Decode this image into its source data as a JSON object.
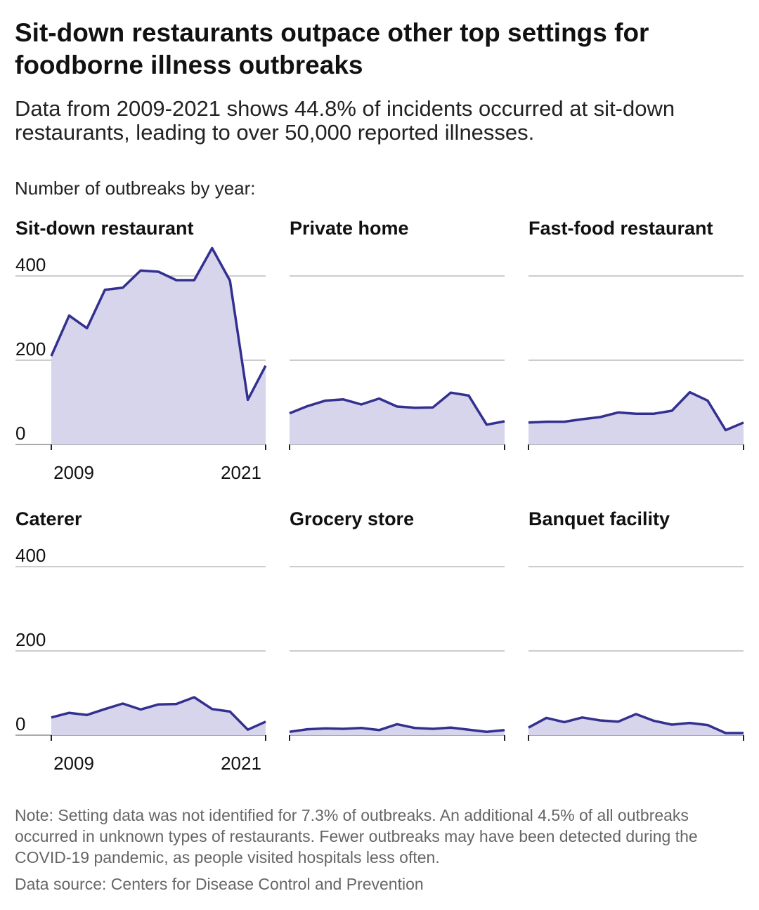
{
  "title": "Sit-down restaurants outpace other top settings for foodborne illness outbreaks",
  "subtitle": "Data from 2009-2021 shows 44.8% of incidents occurred at sit-down restaurants, leading to over 50,000 reported illnesses.",
  "chart_label": "Number of outbreaks by year:",
  "note": "Note: Setting data was not identified for 7.3% of outbreaks. An additional 4.5% of all outbreaks occurred in unknown types of restaurants. Fewer outbreaks may have been detected during the COVID-19 pandemic, as people visited hospitals less often.",
  "source": "Data source: Centers for Disease Control and Prevention",
  "colors": {
    "line": "#33308f",
    "fill": "#d6d5ec",
    "grid": "#999999"
  },
  "chart_data": {
    "type": "area",
    "layout": "small-multiples 3x2, shared y axis",
    "x": [
      2009,
      2010,
      2011,
      2012,
      2013,
      2014,
      2015,
      2016,
      2017,
      2018,
      2019,
      2020,
      2021
    ],
    "x_tick_labels": [
      "2009",
      "2021"
    ],
    "y_ticks": [
      0,
      200,
      400
    ],
    "y_tick_labels": [
      "0",
      "200",
      "400"
    ],
    "ylim": [
      0,
      400
    ],
    "grid": true,
    "panels": [
      {
        "name": "Sit-down restaurant",
        "values": [
          210,
          306,
          276,
          367,
          372,
          413,
          410,
          390,
          390,
          466,
          389,
          106,
          187
        ]
      },
      {
        "name": "Private home",
        "values": [
          74,
          91,
          104,
          107,
          95,
          109,
          90,
          87,
          88,
          123,
          116,
          47,
          55
        ]
      },
      {
        "name": "Fast-food restaurant",
        "values": [
          52,
          54,
          54,
          60,
          65,
          76,
          73,
          73,
          80,
          124,
          104,
          34,
          52
        ]
      },
      {
        "name": "Caterer",
        "values": [
          42,
          53,
          48,
          62,
          75,
          61,
          73,
          74,
          90,
          62,
          56,
          13,
          32
        ]
      },
      {
        "name": "Grocery store",
        "values": [
          8,
          14,
          16,
          15,
          17,
          12,
          26,
          17,
          15,
          18,
          13,
          8,
          12
        ]
      },
      {
        "name": "Banquet facility",
        "values": [
          18,
          41,
          31,
          42,
          35,
          32,
          50,
          34,
          25,
          29,
          24,
          5,
          5
        ]
      }
    ]
  }
}
